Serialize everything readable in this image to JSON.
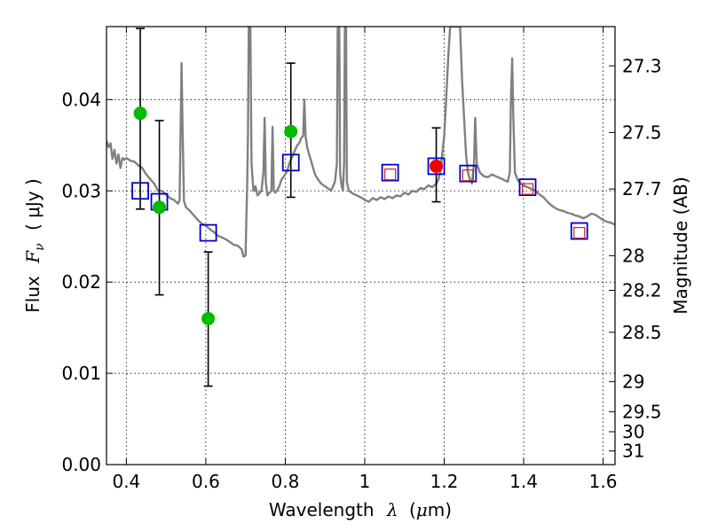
{
  "chart_data": {
    "type": "scatter",
    "xlabel_text": "Wavelength",
    "xlabel_symbol": "λ",
    "xlabel_unit_open": "(",
    "xlabel_unit_mu": "μ",
    "xlabel_unit_rest": "m)",
    "ylabel_text": "Flux",
    "ylabel_symbol": "F",
    "ylabel_sub": "ν",
    "ylabel_unit": "( μJy )",
    "y2label": "Magnitude (AB)",
    "xlim": [
      0.35,
      1.63
    ],
    "ylim": [
      0.0,
      0.048
    ],
    "grid": true,
    "x_ticks": [
      0.4,
      0.6,
      0.8,
      1.0,
      1.2,
      1.4,
      1.6
    ],
    "x_tick_labels": [
      "0.4",
      "0.6",
      "0.8",
      "1",
      "1.2",
      "1.4",
      "1.6"
    ],
    "y_ticks": [
      0.0,
      0.01,
      0.02,
      0.03,
      0.04
    ],
    "y_tick_labels": [
      "0.00",
      "0.01",
      "0.02",
      "0.03",
      "0.04"
    ],
    "y2_ticks": [
      {
        "label": "27.3",
        "flux": 0.0437
      },
      {
        "label": "27.5",
        "flux": 0.0364
      },
      {
        "label": "27.7",
        "flux": 0.0302
      },
      {
        "label": "28",
        "flux": 0.0229
      },
      {
        "label": "28.2",
        "flux": 0.0191
      },
      {
        "label": "28.5",
        "flux": 0.0145
      },
      {
        "label": "29",
        "flux": 0.0091
      },
      {
        "label": "29.5",
        "flux": 0.0058
      },
      {
        "label": "30",
        "flux": 0.0036
      },
      {
        "label": "31",
        "flux": 0.0015
      }
    ],
    "series": [
      {
        "marker": "green-circle",
        "color": "#00bb00",
        "points": [
          {
            "x": 0.435,
            "y": 0.0385,
            "err_low": 0.028,
            "err_high": 0.0478
          },
          {
            "x": 0.483,
            "y": 0.0282,
            "err_low": 0.0186,
            "err_high": 0.0377
          },
          {
            "x": 0.606,
            "y": 0.016,
            "err_low": 0.0086,
            "err_high": 0.0233
          },
          {
            "x": 0.814,
            "y": 0.0365,
            "err_low": 0.0293,
            "err_high": 0.044
          }
        ]
      },
      {
        "marker": "red-circle",
        "color": "#ee0000",
        "points": [
          {
            "x": 1.18,
            "y": 0.0327,
            "err_low": 0.0288,
            "err_high": 0.0369
          }
        ]
      },
      {
        "marker": "blue-square",
        "color": "#0000cc",
        "points": [
          {
            "x": 0.435,
            "y": 0.03
          },
          {
            "x": 0.483,
            "y": 0.0288
          },
          {
            "x": 0.606,
            "y": 0.0254
          },
          {
            "x": 0.814,
            "y": 0.0331
          },
          {
            "x": 1.064,
            "y": 0.032
          },
          {
            "x": 1.18,
            "y": 0.0327
          },
          {
            "x": 1.26,
            "y": 0.0319
          },
          {
            "x": 1.41,
            "y": 0.0304
          },
          {
            "x": 1.54,
            "y": 0.0256
          }
        ]
      },
      {
        "marker": "red-square-small",
        "color": "#cc2222",
        "points": [
          {
            "x": 1.064,
            "y": 0.0318
          },
          {
            "x": 1.26,
            "y": 0.0317
          },
          {
            "x": 1.41,
            "y": 0.0302
          },
          {
            "x": 1.54,
            "y": 0.0254
          }
        ]
      }
    ],
    "model_spectrum": {
      "color": "#808080",
      "points": [
        [
          0.35,
          0.0355
        ],
        [
          0.355,
          0.0348
        ],
        [
          0.36,
          0.0352
        ],
        [
          0.365,
          0.0335
        ],
        [
          0.37,
          0.0345
        ],
        [
          0.375,
          0.033
        ],
        [
          0.38,
          0.034
        ],
        [
          0.385,
          0.0325
        ],
        [
          0.39,
          0.0336
        ],
        [
          0.395,
          0.0334
        ],
        [
          0.4,
          0.0336
        ],
        [
          0.41,
          0.0333
        ],
        [
          0.42,
          0.0332
        ],
        [
          0.43,
          0.0328
        ],
        [
          0.44,
          0.0325
        ],
        [
          0.45,
          0.0318
        ],
        [
          0.46,
          0.0313
        ],
        [
          0.47,
          0.0308
        ],
        [
          0.48,
          0.03
        ],
        [
          0.49,
          0.03
        ],
        [
          0.5,
          0.0296
        ],
        [
          0.51,
          0.0292
        ],
        [
          0.52,
          0.029
        ],
        [
          0.53,
          0.0286
        ],
        [
          0.534,
          0.029
        ],
        [
          0.537,
          0.038
        ],
        [
          0.539,
          0.044
        ],
        [
          0.541,
          0.038
        ],
        [
          0.545,
          0.0289
        ],
        [
          0.55,
          0.0282
        ],
        [
          0.56,
          0.0278
        ],
        [
          0.57,
          0.0273
        ],
        [
          0.58,
          0.0268
        ],
        [
          0.59,
          0.0264
        ],
        [
          0.6,
          0.0262
        ],
        [
          0.61,
          0.0258
        ],
        [
          0.62,
          0.0255
        ],
        [
          0.63,
          0.0251
        ],
        [
          0.64,
          0.0249
        ],
        [
          0.65,
          0.0247
        ],
        [
          0.66,
          0.0244
        ],
        [
          0.67,
          0.0241
        ],
        [
          0.68,
          0.024
        ],
        [
          0.69,
          0.0236
        ],
        [
          0.695,
          0.0228
        ],
        [
          0.7,
          0.0229
        ],
        [
          0.702,
          0.027
        ],
        [
          0.704,
          0.0305
        ],
        [
          0.706,
          0.036
        ],
        [
          0.708,
          0.048
        ],
        [
          0.712,
          0.048
        ],
        [
          0.715,
          0.033
        ],
        [
          0.72,
          0.03
        ],
        [
          0.725,
          0.0305
        ],
        [
          0.73,
          0.0295
        ],
        [
          0.74,
          0.03
        ],
        [
          0.745,
          0.032
        ],
        [
          0.748,
          0.038
        ],
        [
          0.751,
          0.031
        ],
        [
          0.755,
          0.0295
        ],
        [
          0.76,
          0.0298
        ],
        [
          0.765,
          0.03
        ],
        [
          0.768,
          0.037
        ],
        [
          0.771,
          0.03
        ],
        [
          0.775,
          0.0298
        ],
        [
          0.78,
          0.0301
        ],
        [
          0.785,
          0.0305
        ],
        [
          0.79,
          0.0312
        ],
        [
          0.8,
          0.0318
        ],
        [
          0.805,
          0.0322
        ],
        [
          0.81,
          0.033
        ],
        [
          0.815,
          0.0335
        ],
        [
          0.82,
          0.034
        ],
        [
          0.825,
          0.0345
        ],
        [
          0.83,
          0.035
        ],
        [
          0.835,
          0.0352
        ],
        [
          0.84,
          0.0358
        ],
        [
          0.845,
          0.036
        ],
        [
          0.848,
          0.04
        ],
        [
          0.851,
          0.036
        ],
        [
          0.855,
          0.0348
        ],
        [
          0.86,
          0.034
        ],
        [
          0.865,
          0.0333
        ],
        [
          0.87,
          0.0325
        ],
        [
          0.875,
          0.0318
        ],
        [
          0.88,
          0.0314
        ],
        [
          0.89,
          0.0308
        ],
        [
          0.9,
          0.0305
        ],
        [
          0.91,
          0.0302
        ],
        [
          0.915,
          0.03
        ],
        [
          0.92,
          0.0305
        ],
        [
          0.925,
          0.031
        ],
        [
          0.93,
          0.033
        ],
        [
          0.932,
          0.048
        ],
        [
          0.936,
          0.048
        ],
        [
          0.938,
          0.032
        ],
        [
          0.942,
          0.0305
        ],
        [
          0.945,
          0.03
        ],
        [
          0.948,
          0.033
        ],
        [
          0.95,
          0.048
        ],
        [
          0.953,
          0.048
        ],
        [
          0.955,
          0.031
        ],
        [
          0.96,
          0.03
        ],
        [
          0.97,
          0.0297
        ],
        [
          0.98,
          0.0295
        ],
        [
          0.99,
          0.0293
        ],
        [
          1.0,
          0.029
        ],
        [
          1.01,
          0.0288
        ],
        [
          1.02,
          0.0292
        ],
        [
          1.03,
          0.029
        ],
        [
          1.04,
          0.0293
        ],
        [
          1.05,
          0.0291
        ],
        [
          1.06,
          0.0294
        ],
        [
          1.07,
          0.0292
        ],
        [
          1.08,
          0.0295
        ],
        [
          1.09,
          0.0294
        ],
        [
          1.1,
          0.0298
        ],
        [
          1.11,
          0.0296
        ],
        [
          1.12,
          0.03
        ],
        [
          1.13,
          0.0299
        ],
        [
          1.14,
          0.0303
        ],
        [
          1.15,
          0.0302
        ],
        [
          1.16,
          0.0306
        ],
        [
          1.17,
          0.0304
        ],
        [
          1.18,
          0.0308
        ],
        [
          1.185,
          0.0312
        ],
        [
          1.19,
          0.032
        ],
        [
          1.195,
          0.034
        ],
        [
          1.2,
          0.036
        ],
        [
          1.205,
          0.04
        ],
        [
          1.21,
          0.0445
        ],
        [
          1.215,
          0.048
        ],
        [
          1.225,
          0.048
        ],
        [
          1.23,
          0.048
        ],
        [
          1.235,
          0.048
        ],
        [
          1.24,
          0.048
        ],
        [
          1.245,
          0.042
        ],
        [
          1.25,
          0.038
        ],
        [
          1.255,
          0.034
        ],
        [
          1.26,
          0.032
        ],
        [
          1.265,
          0.0312
        ],
        [
          1.27,
          0.0308
        ],
        [
          1.275,
          0.033
        ],
        [
          1.278,
          0.038
        ],
        [
          1.282,
          0.033
        ],
        [
          1.29,
          0.032
        ],
        [
          1.3,
          0.0316
        ],
        [
          1.31,
          0.0315
        ],
        [
          1.32,
          0.0318
        ],
        [
          1.33,
          0.0316
        ],
        [
          1.34,
          0.0314
        ],
        [
          1.35,
          0.0312
        ],
        [
          1.36,
          0.031
        ],
        [
          1.365,
          0.032
        ],
        [
          1.368,
          0.04
        ],
        [
          1.371,
          0.0445
        ],
        [
          1.374,
          0.038
        ],
        [
          1.378,
          0.032
        ],
        [
          1.385,
          0.0312
        ],
        [
          1.39,
          0.0309
        ],
        [
          1.4,
          0.0306
        ],
        [
          1.41,
          0.0304
        ],
        [
          1.42,
          0.0302
        ],
        [
          1.43,
          0.03
        ],
        [
          1.44,
          0.0296
        ],
        [
          1.45,
          0.0293
        ],
        [
          1.46,
          0.0288
        ],
        [
          1.47,
          0.0284
        ],
        [
          1.48,
          0.0281
        ],
        [
          1.49,
          0.0279
        ],
        [
          1.5,
          0.0278
        ],
        [
          1.51,
          0.0276
        ],
        [
          1.52,
          0.0275
        ],
        [
          1.53,
          0.0273
        ],
        [
          1.54,
          0.0272
        ],
        [
          1.55,
          0.027
        ],
        [
          1.56,
          0.0272
        ],
        [
          1.57,
          0.0275
        ],
        [
          1.58,
          0.0274
        ],
        [
          1.59,
          0.0271
        ],
        [
          1.6,
          0.0268
        ],
        [
          1.61,
          0.0266
        ],
        [
          1.62,
          0.0265
        ],
        [
          1.63,
          0.0263
        ]
      ]
    }
  }
}
